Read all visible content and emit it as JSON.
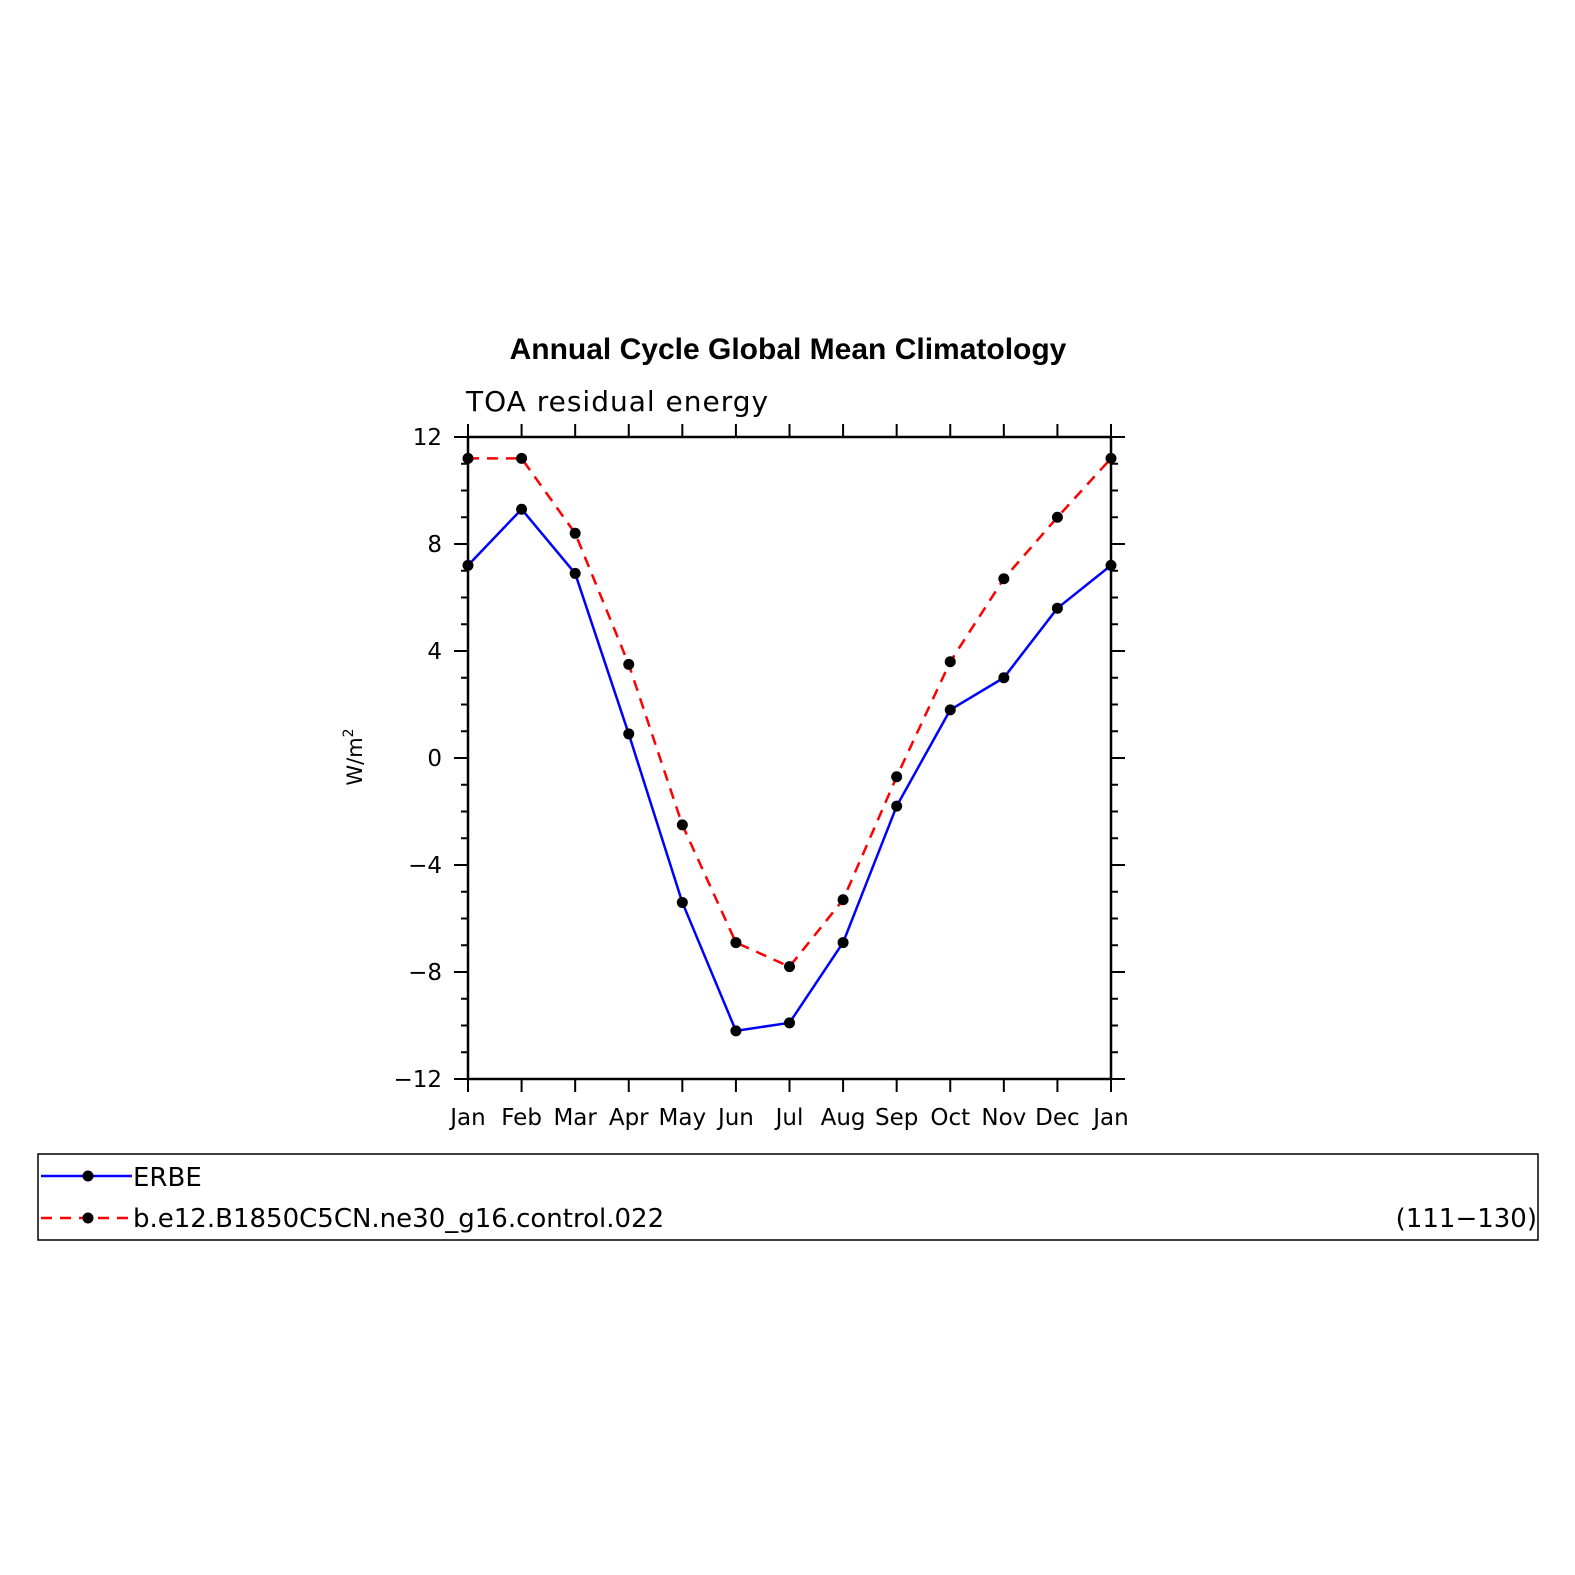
{
  "chart_data": {
    "type": "line",
    "title": "Annual Cycle Global Mean Climatology",
    "subtitle": "TOA residual energy",
    "ylabel_base": "W/m",
    "ylabel_sup": "2",
    "ylim": [
      -12,
      12
    ],
    "yticks": [
      12,
      8,
      4,
      0,
      -4,
      -8,
      -12
    ],
    "ytick_labels": [
      "12",
      "8",
      "4",
      "0",
      "−4",
      "−8",
      "−12"
    ],
    "categories": [
      "Jan",
      "Feb",
      "Mar",
      "Apr",
      "May",
      "Jun",
      "Jul",
      "Aug",
      "Sep",
      "Oct",
      "Nov",
      "Dec",
      "Jan"
    ],
    "grid": false,
    "legend_placement": "bottom",
    "series": [
      {
        "name": "ERBE",
        "color": "#0000ff",
        "dash": "solid",
        "marker": "dot",
        "values": [
          7.2,
          9.3,
          6.9,
          0.9,
          -5.4,
          -10.2,
          -9.9,
          -6.9,
          -1.8,
          1.8,
          3.0,
          5.6,
          7.2
        ]
      },
      {
        "name": "b.e12.B1850C5CN.ne30_g16.control.022",
        "color": "#ff0000",
        "dash": "dashed",
        "marker": "dot",
        "values": [
          11.2,
          11.2,
          8.4,
          3.5,
          -2.5,
          -6.9,
          -7.8,
          -5.3,
          -0.7,
          3.6,
          6.7,
          9.0,
          11.2
        ]
      }
    ],
    "legend_note": "(111−130)"
  }
}
